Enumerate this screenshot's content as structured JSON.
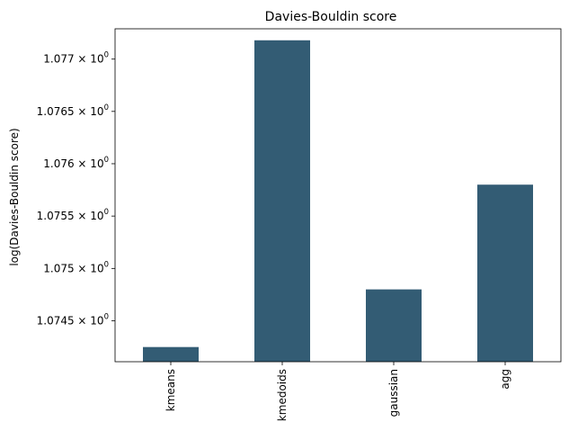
{
  "chart_data": {
    "type": "bar",
    "title": "Davies-Bouldin score",
    "xlabel": "",
    "ylabel": "log(Davies-Bouldin score)",
    "yscale": "log",
    "categories": [
      "kmeans",
      "kmedoids",
      "gaussian",
      "agg"
    ],
    "values": [
      1.07425,
      1.07718,
      1.0748,
      1.0758
    ],
    "ylim": [
      1.07411,
      1.07729
    ],
    "yticks": [
      1.0745,
      1.075,
      1.0755,
      1.076,
      1.0765,
      1.077
    ],
    "ytick_labels": [
      {
        "mantissa": "1.0745",
        "base": "10",
        "exp": "0"
      },
      {
        "mantissa": "1.075",
        "base": "10",
        "exp": "0"
      },
      {
        "mantissa": "1.0755",
        "base": "10",
        "exp": "0"
      },
      {
        "mantissa": "1.076",
        "base": "10",
        "exp": "0"
      },
      {
        "mantissa": "1.0765",
        "base": "10",
        "exp": "0"
      },
      {
        "mantissa": "1.077",
        "base": "10",
        "exp": "0"
      }
    ],
    "grid": false,
    "bar_color": "#335c74",
    "x_tick_rotation": 90
  }
}
